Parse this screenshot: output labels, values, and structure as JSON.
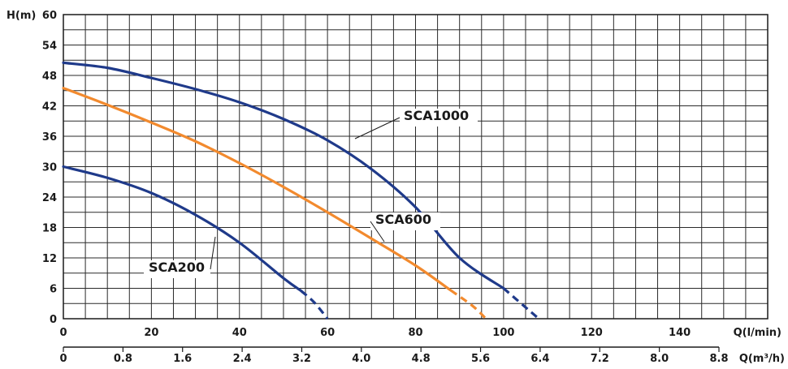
{
  "chart_data": {
    "type": "line",
    "title": "",
    "ylabel": "H(m)",
    "xlabel": "Q(l/min)",
    "x2label": "Q(m³/h)",
    "ylim": [
      0,
      60
    ],
    "xlim": [
      0,
      160
    ],
    "y_ticks": [
      "0",
      "6",
      "12",
      "18",
      "24",
      "30",
      "36",
      "42",
      "48",
      "54",
      "60"
    ],
    "x_ticks": [
      "0",
      "20",
      "40",
      "60",
      "80",
      "100",
      "120",
      "140"
    ],
    "x2_ticks": [
      "0",
      "0.8",
      "1.6",
      "2.4",
      "3.2",
      "4.0",
      "4.8",
      "5.6",
      "6.4",
      "7.2",
      "8.0",
      "8.8"
    ],
    "grid": true,
    "series": [
      {
        "name": "SCA1000",
        "color": "#1f3a8a",
        "points": [
          [
            0,
            50.5
          ],
          [
            10,
            49.5
          ],
          [
            20,
            47.5
          ],
          [
            30,
            45.3
          ],
          [
            40,
            42.7
          ],
          [
            50,
            39.4
          ],
          [
            60,
            35.2
          ],
          [
            70,
            29.5
          ],
          [
            80,
            22.0
          ],
          [
            90,
            12.0
          ],
          [
            100,
            6.0
          ],
          [
            108,
            0
          ]
        ],
        "dashed_from_x": 100
      },
      {
        "name": "SCA600",
        "color": "#f28a2e",
        "points": [
          [
            0,
            45.5
          ],
          [
            10,
            42.2
          ],
          [
            20,
            38.7
          ],
          [
            30,
            35.0
          ],
          [
            40,
            30.7
          ],
          [
            50,
            26.0
          ],
          [
            60,
            21.0
          ],
          [
            70,
            15.8
          ],
          [
            80,
            10.5
          ],
          [
            88,
            5.6
          ],
          [
            93,
            2.5
          ],
          [
            96,
            0
          ]
        ],
        "dashed_from_x": 88
      },
      {
        "name": "SCA200",
        "color": "#1f3a8a",
        "points": [
          [
            0,
            30.0
          ],
          [
            10,
            27.8
          ],
          [
            20,
            24.8
          ],
          [
            30,
            20.5
          ],
          [
            40,
            15.0
          ],
          [
            50,
            8.0
          ],
          [
            54,
            5.5
          ],
          [
            57,
            3.2
          ],
          [
            60,
            0
          ]
        ],
        "dashed_from_x": 54
      }
    ],
    "annotations": [
      "SCA1000",
      "SCA600",
      "SCA200"
    ]
  }
}
